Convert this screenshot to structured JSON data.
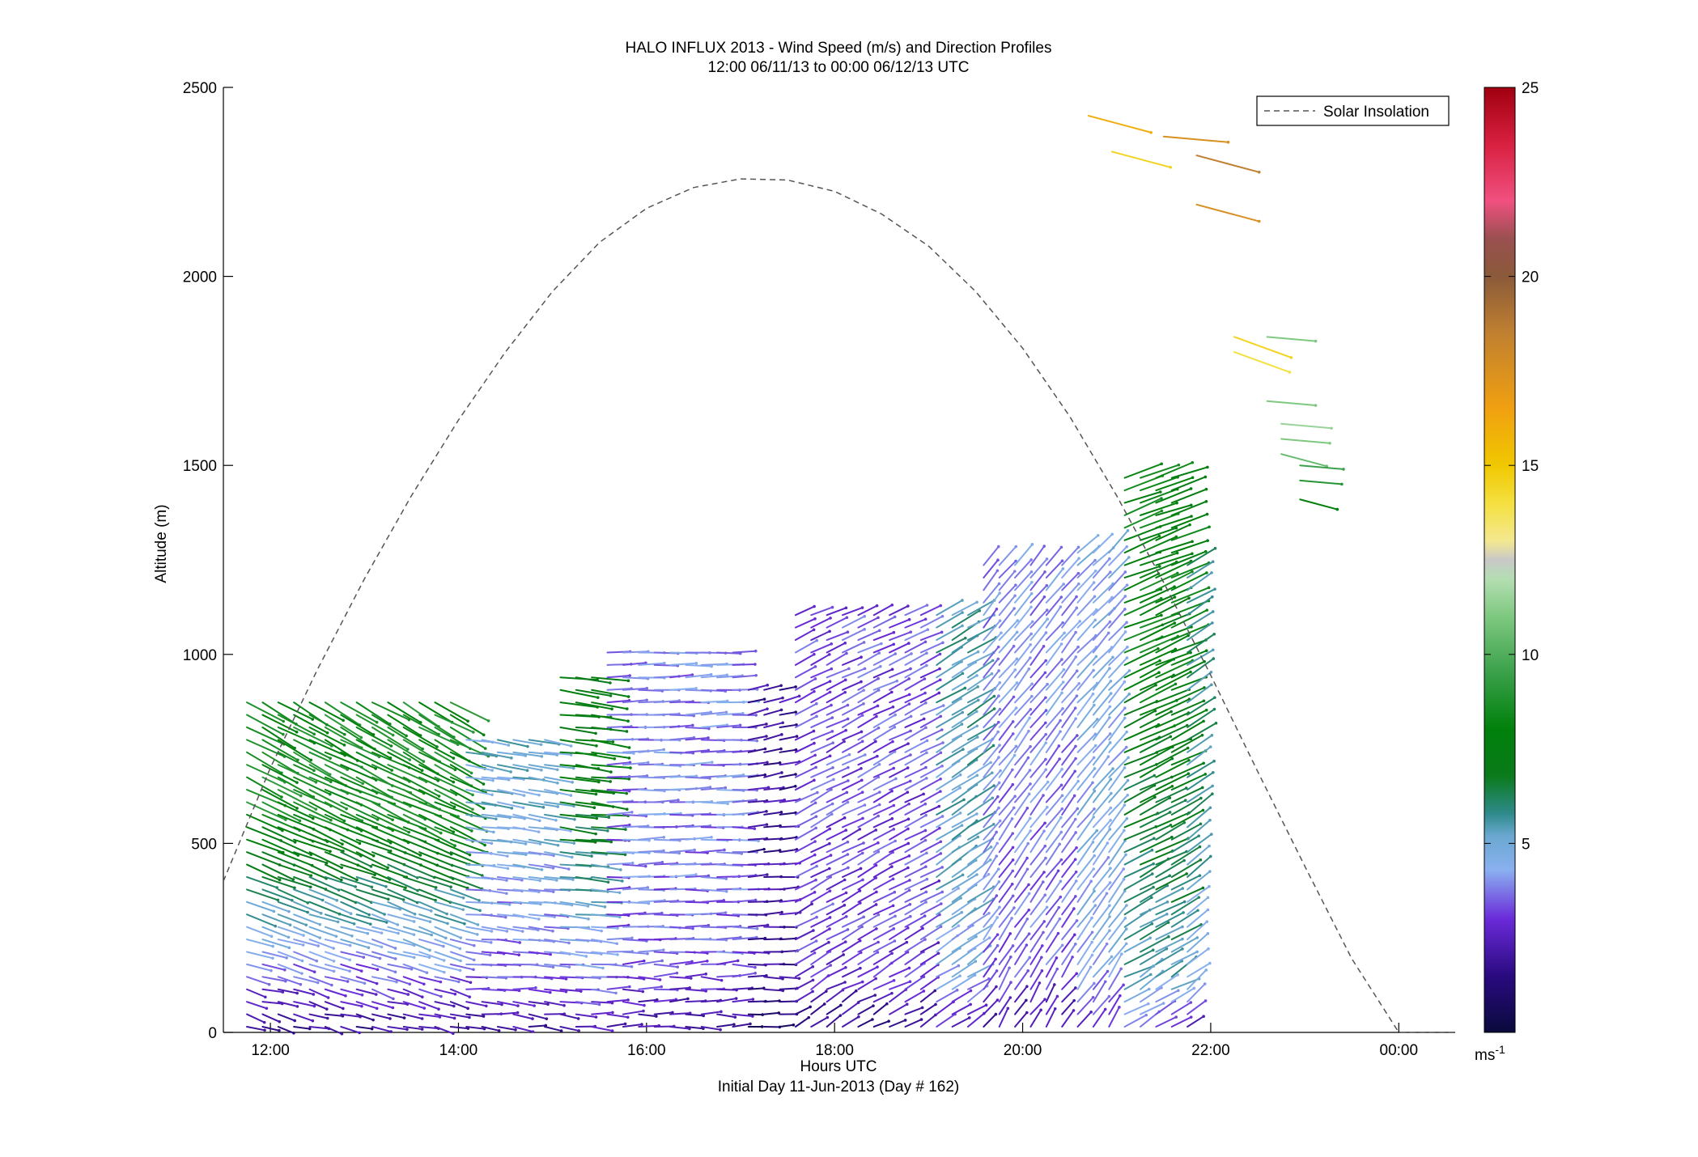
{
  "chart_data": {
    "type": "quiver",
    "title": "HALO INFLUX 2013 - Wind Speed (m/s) and Direction Profiles",
    "subtitle": "12:00 06/11/13 to 00:00 06/12/13  UTC",
    "xlabel": "Hours UTC",
    "xlabel2": "Initial Day 11-Jun-2013 (Day # 162)",
    "ylabel": "Altitude (m)",
    "xlim": [
      11.5,
      24.6
    ],
    "ylim": [
      0,
      2500
    ],
    "x_ticks": [
      {
        "value": 12,
        "label": "12:00"
      },
      {
        "value": 14,
        "label": "14:00"
      },
      {
        "value": 16,
        "label": "16:00"
      },
      {
        "value": 18,
        "label": "18:00"
      },
      {
        "value": 20,
        "label": "20:00"
      },
      {
        "value": 22,
        "label": "22:00"
      },
      {
        "value": 24,
        "label": "00:00"
      }
    ],
    "y_ticks": [
      {
        "value": 0,
        "label": "0"
      },
      {
        "value": 500,
        "label": "500"
      },
      {
        "value": 1000,
        "label": "1000"
      },
      {
        "value": 1500,
        "label": "1500"
      },
      {
        "value": 2000,
        "label": "2000"
      },
      {
        "value": 2500,
        "label": "2500"
      }
    ],
    "legend": {
      "label": "Solar Insolation",
      "position": "top-right",
      "style": "dashed",
      "color": "#555555"
    },
    "solar_insolation": {
      "x": [
        11.5,
        12.0,
        12.5,
        13.0,
        13.5,
        14.0,
        14.5,
        15.0,
        15.5,
        16.0,
        16.5,
        17.0,
        17.5,
        18.0,
        18.5,
        19.0,
        19.5,
        20.0,
        20.5,
        21.0,
        21.5,
        22.0,
        22.5,
        23.0,
        23.5,
        24.0,
        24.5,
        24.6
      ],
      "y": [
        400,
        700,
        960,
        1200,
        1420,
        1620,
        1800,
        1960,
        2090,
        2180,
        2235,
        2258,
        2255,
        2225,
        2165,
        2080,
        1960,
        1810,
        1630,
        1420,
        1190,
        945,
        690,
        440,
        195,
        0,
        0,
        0
      ]
    },
    "colorbar": {
      "label": "ms",
      "label_exp": "-1",
      "range": [
        0,
        25
      ],
      "ticks": [
        {
          "value": 5,
          "label": "5"
        },
        {
          "value": 10,
          "label": "10"
        },
        {
          "value": 15,
          "label": "15"
        },
        {
          "value": 20,
          "label": "20"
        },
        {
          "value": 25,
          "label": "25"
        }
      ],
      "stops": [
        {
          "v": 0,
          "c": "#0a0a3c"
        },
        {
          "v": 1.5,
          "c": "#2a0a80"
        },
        {
          "v": 3,
          "c": "#6a2ad8"
        },
        {
          "v": 4.3,
          "c": "#8ab0f0"
        },
        {
          "v": 5.2,
          "c": "#6aa8d0"
        },
        {
          "v": 5.8,
          "c": "#2e8a8a"
        },
        {
          "v": 6.8,
          "c": "#0a7a1a"
        },
        {
          "v": 8,
          "c": "#00800a"
        },
        {
          "v": 9.5,
          "c": "#3aa04a"
        },
        {
          "v": 11,
          "c": "#7ec880"
        },
        {
          "v": 12,
          "c": "#b4deb2"
        },
        {
          "v": 12.5,
          "c": "#c8c8c8"
        },
        {
          "v": 13,
          "c": "#f4e890"
        },
        {
          "v": 14,
          "c": "#f4e040"
        },
        {
          "v": 15,
          "c": "#f0c800"
        },
        {
          "v": 16.5,
          "c": "#f0a010"
        },
        {
          "v": 18.5,
          "c": "#c08030"
        },
        {
          "v": 20,
          "c": "#8a5a3a"
        },
        {
          "v": 21,
          "c": "#9a5050"
        },
        {
          "v": 22,
          "c": "#f05080"
        },
        {
          "v": 23.5,
          "c": "#d82040"
        },
        {
          "v": 25,
          "c": "#a00010"
        }
      ]
    },
    "wind_profiles": {
      "time_start": 11.75,
      "time_step": 0.1667,
      "profile_count": 61,
      "altitude_step": 33,
      "note_units": "u,v in m/s; speed = sqrt(u^2+v^2)",
      "regimes": [
        {
          "from": 11.7,
          "to": 14.0,
          "low_top": 120,
          "low_speed": 3.0,
          "low_dir": 285,
          "upper_top": 880,
          "upper_speed": 8.5,
          "upper_dir": 300
        },
        {
          "from": 14.0,
          "to": 15.0,
          "low_top": 180,
          "low_speed": 3.5,
          "low_dir": 275,
          "upper_top": 800,
          "upper_speed": 5.0,
          "upper_dir": 280
        },
        {
          "from": 15.0,
          "to": 15.5,
          "low_top": 180,
          "low_speed": 4.0,
          "low_dir": 275,
          "upper_top": 960,
          "upper_speed": 7.5,
          "upper_dir": 278
        },
        {
          "from": 15.5,
          "to": 17.0,
          "low_top": 200,
          "low_speed": 3.5,
          "low_dir": 270,
          "upper_top": 1010,
          "upper_speed": 3.8,
          "upper_dir": 268
        },
        {
          "from": 17.0,
          "to": 17.5,
          "low_top": 150,
          "low_speed": 2.0,
          "low_dir": 270,
          "upper_top": 930,
          "upper_speed": 2.0,
          "upper_dir": 255
        },
        {
          "from": 17.5,
          "to": 19.0,
          "low_top": 150,
          "low_speed": 3.0,
          "low_dir": 240,
          "upper_top": 1120,
          "upper_speed": 3.3,
          "upper_dir": 245
        },
        {
          "from": 19.0,
          "to": 19.5,
          "low_top": 150,
          "low_speed": 4.5,
          "low_dir": 235,
          "upper_top": 1130,
          "upper_speed": 5.5,
          "upper_dir": 240
        },
        {
          "from": 19.5,
          "to": 20.5,
          "low_top": 150,
          "low_speed": 3.5,
          "low_dir": 215,
          "upper_top": 1250,
          "upper_speed": 4.0,
          "upper_dir": 220
        },
        {
          "from": 20.5,
          "to": 21.0,
          "low_top": 150,
          "low_speed": 4.5,
          "low_dir": 215,
          "upper_top": 1290,
          "upper_speed": 4.5,
          "upper_dir": 225
        },
        {
          "from": 21.0,
          "to": 21.6,
          "low_top": 150,
          "low_speed": 5.5,
          "low_dir": 240,
          "upper_top": 1490,
          "upper_speed": 8.0,
          "upper_dir": 250
        },
        {
          "from": 21.6,
          "to": 22.0,
          "low_top": 150,
          "low_speed": 4.8,
          "low_dir": 230,
          "upper_top": 1250,
          "upper_speed": 6.0,
          "upper_dir": 240
        },
        {
          "from": 22.0,
          "to": 22.5,
          "low_top": 150,
          "low_speed": 3.5,
          "low_dir": 205,
          "upper_top": 1200,
          "upper_speed": 3.5,
          "upper_dir": 205
        },
        {
          "from": 22.5,
          "to": 23.5,
          "low_top": 150,
          "low_speed": 4.0,
          "low_dir": 195,
          "upper_top": 1140,
          "upper_speed": 5.5,
          "upper_dir": 195
        },
        {
          "from": 23.5,
          "to": 24.0,
          "low_top": 150,
          "low_speed": 4.5,
          "low_dir": 190,
          "upper_top": 1060,
          "upper_speed": 5.8,
          "upper_dir": 195
        }
      ],
      "upper_level_layers": [
        {
          "x": 20.7,
          "alt": 2425,
          "speed": 16.0,
          "dir": 285
        },
        {
          "x": 21.5,
          "alt": 2370,
          "speed": 17.5,
          "dir": 275
        },
        {
          "x": 20.95,
          "alt": 2330,
          "speed": 14.5,
          "dir": 285
        },
        {
          "x": 21.85,
          "alt": 2320,
          "speed": 18.5,
          "dir": 285
        },
        {
          "x": 21.85,
          "alt": 2190,
          "speed": 17.5,
          "dir": 285
        },
        {
          "x": 22.25,
          "alt": 1840,
          "speed": 14.5,
          "dir": 290
        },
        {
          "x": 22.25,
          "alt": 1800,
          "speed": 14.0,
          "dir": 290
        },
        {
          "x": 22.6,
          "alt": 1840,
          "speed": 11.0,
          "dir": 275
        },
        {
          "x": 22.6,
          "alt": 1670,
          "speed": 11.0,
          "dir": 275
        },
        {
          "x": 22.75,
          "alt": 1610,
          "speed": 11.5,
          "dir": 275
        },
        {
          "x": 22.75,
          "alt": 1570,
          "speed": 11.0,
          "dir": 275
        },
        {
          "x": 22.75,
          "alt": 1530,
          "speed": 10.5,
          "dir": 285
        },
        {
          "x": 22.95,
          "alt": 1500,
          "speed": 9.5,
          "dir": 275
        },
        {
          "x": 22.95,
          "alt": 1460,
          "speed": 9.0,
          "dir": 275
        },
        {
          "x": 22.95,
          "alt": 1410,
          "speed": 8.0,
          "dir": 285
        }
      ]
    }
  }
}
